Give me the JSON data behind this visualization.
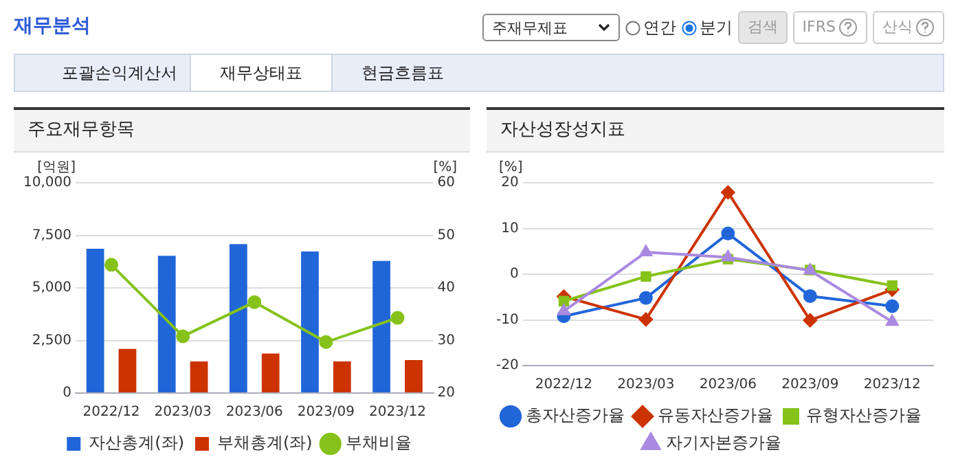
{
  "chart_data": [
    {
      "type": "bar",
      "title": "주요재무항목",
      "ylabel": "[억원]",
      "y2label": "[%]",
      "annotations": [
        "재무분석",
        "주재무제표",
        "연간",
        "분기",
        "검색",
        "IFRS",
        "산식",
        "포괄손익계산서",
        "재무상태표",
        "현금흐름표"
      ],
      "categories": [
        "2022/12",
        "2023/03",
        "2023/06",
        "2023/09",
        "2023/12"
      ],
      "series": [
        {
          "name": "자산총계(좌)",
          "type": "bar",
          "color": "#2166d9",
          "values": [
            6860,
            6530,
            7080,
            6730,
            6280
          ]
        },
        {
          "name": "부채총계(좌)",
          "type": "bar",
          "color": "#cc3300",
          "values": [
            2100,
            1500,
            1880,
            1500,
            1570
          ]
        },
        {
          "name": "부채비율",
          "type": "line",
          "axis": "y2",
          "color": "#86c21a",
          "marker": "circle",
          "values": [
            44.4,
            30.8,
            37.3,
            29.7,
            34.3
          ]
        }
      ],
      "ylim": [
        0,
        10000
      ],
      "yticks": [
        0,
        {
          "value": 2500,
          "label": "2,500"
        },
        {
          "value": 5000,
          "label": "5,000"
        },
        {
          "value": 7500,
          "label": "7,500"
        },
        {
          "value": 10000,
          "label": "10,000"
        }
      ],
      "y2lim": [
        20,
        60
      ],
      "y2ticks": [
        20,
        30,
        40,
        50,
        60
      ],
      "grid": "y",
      "legend": "bottom"
    },
    {
      "type": "line",
      "title": "자산성장성지표",
      "ylabel": "[%]",
      "categories": [
        "2022/12",
        "2023/03",
        "2023/06",
        "2023/09",
        "2023/12"
      ],
      "series": [
        {
          "name": "총자산증가율",
          "color": "#2166d9",
          "marker": "circle",
          "values": [
            -9.2,
            -5.2,
            8.9,
            -4.8,
            -7.0
          ]
        },
        {
          "name": "유동자산증가율",
          "color": "#cc3300",
          "marker": "diamond",
          "values": [
            -4.9,
            -9.9,
            17.9,
            -10.1,
            -3.4
          ]
        },
        {
          "name": "유형자산증가율",
          "color": "#86c21a",
          "marker": "square",
          "values": [
            -5.9,
            -0.5,
            3.3,
            0.9,
            -2.5
          ]
        },
        {
          "name": "자기자본증가율",
          "color": "#a98ae0",
          "marker": "triangle",
          "values": [
            -8.1,
            4.8,
            3.7,
            0.8,
            -10.4
          ]
        }
      ],
      "ylim": [
        -20,
        20
      ],
      "yticks": [
        -20,
        -10,
        0,
        10,
        20
      ],
      "grid": "y",
      "legend": "bottom"
    }
  ]
}
